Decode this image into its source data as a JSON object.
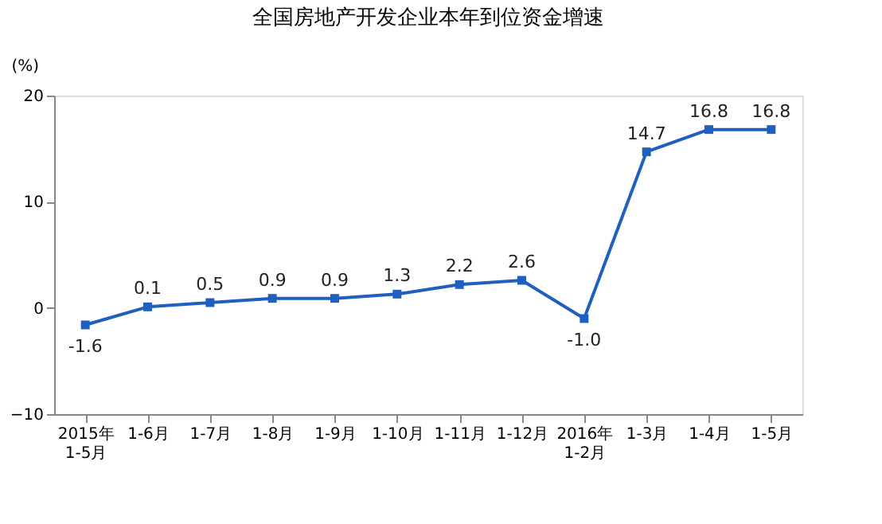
{
  "chart_data": {
    "type": "line",
    "title": "全国房地产开发企业本年到位资金增速",
    "ylabel": "(%)",
    "categories": [
      "2015年\n1-5月",
      "1-6月",
      "1-7月",
      "1-8月",
      "1-9月",
      "1-10月",
      "1-11月",
      "1-12月",
      "2016年\n1-2月",
      "1-3月",
      "1-4月",
      "1-5月"
    ],
    "series": [
      {
        "color": "#1f5fbf",
        "values": [
          -1.6,
          0.1,
          0.5,
          0.9,
          0.9,
          1.3,
          2.2,
          2.6,
          -1.0,
          14.7,
          16.8,
          16.8
        ],
        "value_labels": [
          "-1.6",
          "0.1",
          "0.5",
          "0.9",
          "0.9",
          "1.3",
          "2.2",
          "2.6",
          "-1.0",
          "14.7",
          "16.8",
          "16.8"
        ]
      }
    ],
    "ylim": [
      -10,
      20
    ],
    "yticks": [
      -10,
      0,
      10,
      20
    ],
    "grid": false,
    "legend": false,
    "marker": "square",
    "line_style": "solid"
  }
}
